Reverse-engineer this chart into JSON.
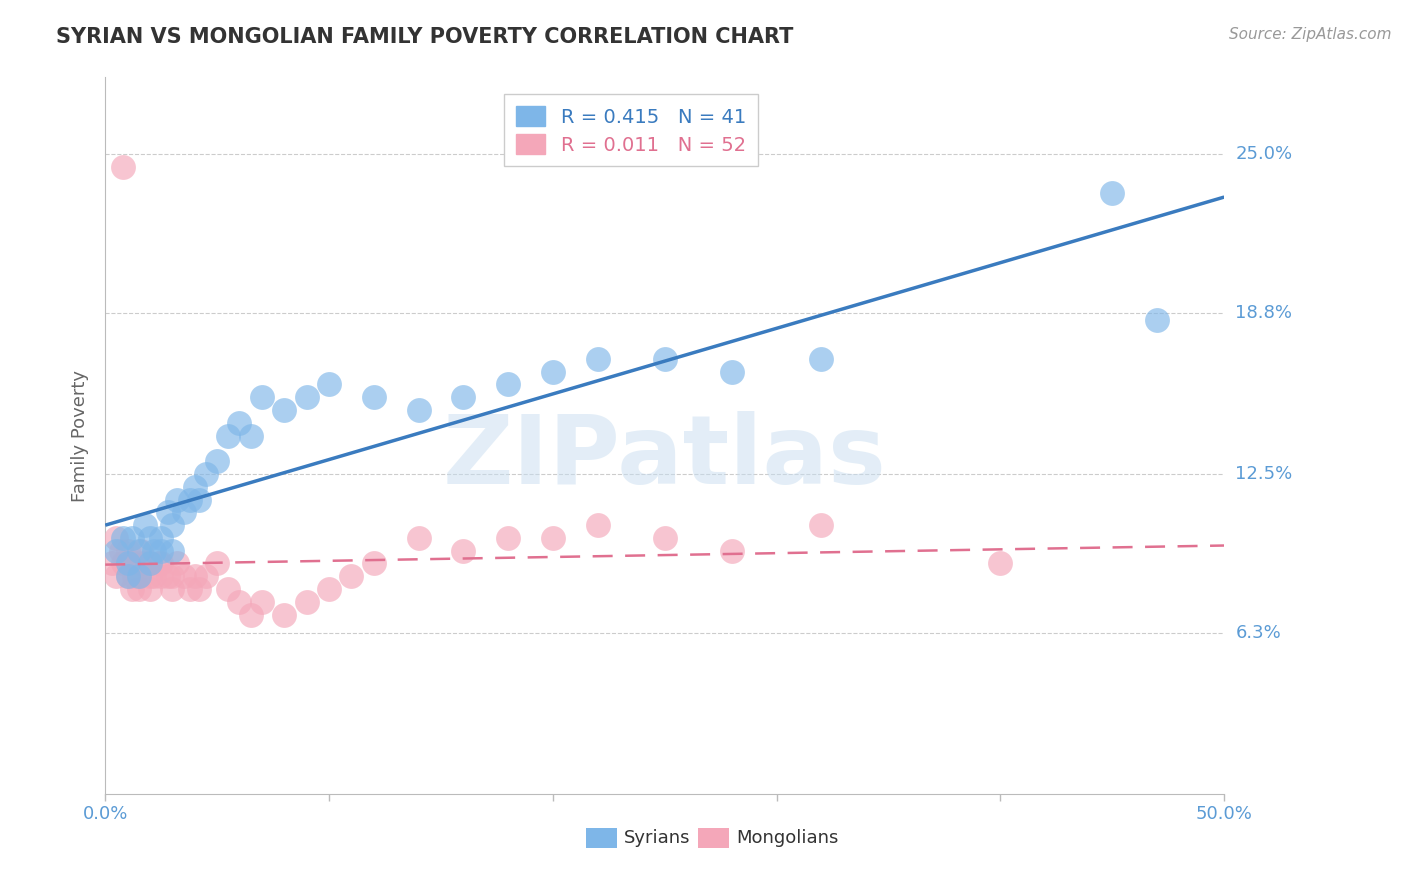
{
  "title": "SYRIAN VS MONGOLIAN FAMILY POVERTY CORRELATION CHART",
  "source": "Source: ZipAtlas.com",
  "ylabel": "Family Poverty",
  "ytick_labels": [
    "25.0%",
    "18.8%",
    "12.5%",
    "6.3%"
  ],
  "ytick_values": [
    0.25,
    0.188,
    0.125,
    0.063
  ],
  "xlim": [
    0.0,
    0.5
  ],
  "ylim": [
    0.0,
    0.28
  ],
  "legend_r_syrian": "R = 0.415",
  "legend_n_syrian": "N = 41",
  "legend_r_mongolian": "R = 0.011",
  "legend_n_mongolian": "N = 52",
  "legend_label_syrians": "Syrians",
  "legend_label_mongolians": "Mongolians",
  "syrian_color": "#7eb6e8",
  "mongolian_color": "#f4a7b9",
  "syrian_line_color": "#3a7bbf",
  "mongolian_line_color": "#e07090",
  "watermark": "ZIPatlas",
  "background_color": "#ffffff",
  "grid_color": "#cccccc",
  "title_color": "#333333",
  "axis_label_color": "#5b9bd5",
  "syrians_x": [
    0.005,
    0.008,
    0.01,
    0.01,
    0.012,
    0.015,
    0.015,
    0.018,
    0.02,
    0.02,
    0.022,
    0.025,
    0.025,
    0.028,
    0.03,
    0.03,
    0.032,
    0.035,
    0.038,
    0.04,
    0.042,
    0.045,
    0.05,
    0.055,
    0.06,
    0.065,
    0.07,
    0.08,
    0.09,
    0.1,
    0.12,
    0.14,
    0.16,
    0.18,
    0.2,
    0.22,
    0.25,
    0.28,
    0.32,
    0.45,
    0.47
  ],
  "syrians_y": [
    0.095,
    0.1,
    0.09,
    0.085,
    0.1,
    0.095,
    0.085,
    0.105,
    0.1,
    0.09,
    0.095,
    0.1,
    0.095,
    0.11,
    0.105,
    0.095,
    0.115,
    0.11,
    0.115,
    0.12,
    0.115,
    0.125,
    0.13,
    0.14,
    0.145,
    0.14,
    0.155,
    0.15,
    0.155,
    0.16,
    0.155,
    0.15,
    0.155,
    0.16,
    0.165,
    0.17,
    0.17,
    0.165,
    0.17,
    0.235,
    0.185
  ],
  "mongolians_x": [
    0.003,
    0.005,
    0.005,
    0.007,
    0.008,
    0.01,
    0.01,
    0.01,
    0.012,
    0.012,
    0.013,
    0.015,
    0.015,
    0.015,
    0.016,
    0.018,
    0.02,
    0.02,
    0.02,
    0.022,
    0.024,
    0.025,
    0.025,
    0.028,
    0.03,
    0.03,
    0.032,
    0.035,
    0.038,
    0.04,
    0.042,
    0.045,
    0.05,
    0.055,
    0.06,
    0.065,
    0.07,
    0.08,
    0.09,
    0.1,
    0.11,
    0.12,
    0.14,
    0.16,
    0.18,
    0.2,
    0.22,
    0.25,
    0.28,
    0.32,
    0.4,
    0.008
  ],
  "mongolians_y": [
    0.09,
    0.085,
    0.1,
    0.095,
    0.09,
    0.085,
    0.09,
    0.095,
    0.08,
    0.09,
    0.085,
    0.09,
    0.085,
    0.08,
    0.095,
    0.09,
    0.085,
    0.09,
    0.08,
    0.085,
    0.09,
    0.085,
    0.09,
    0.085,
    0.085,
    0.08,
    0.09,
    0.085,
    0.08,
    0.085,
    0.08,
    0.085,
    0.09,
    0.08,
    0.075,
    0.07,
    0.075,
    0.07,
    0.075,
    0.08,
    0.085,
    0.09,
    0.1,
    0.095,
    0.1,
    0.1,
    0.105,
    0.1,
    0.095,
    0.105,
    0.09,
    0.245
  ]
}
